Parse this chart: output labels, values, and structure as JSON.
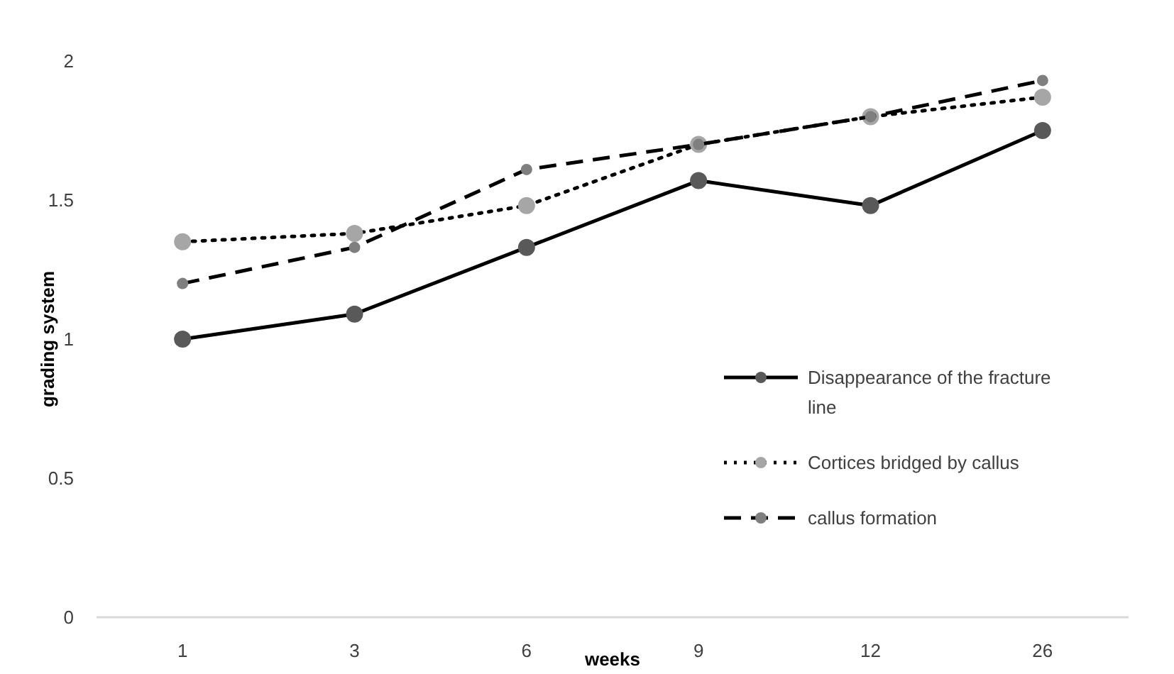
{
  "chart_data": {
    "type": "line",
    "xlabel": "weeks",
    "ylabel": "grading system",
    "categories": [
      "1",
      "3",
      "6",
      "9",
      "12",
      "26"
    ],
    "series": [
      {
        "name": "Disappearance of the fracture line",
        "color": "#595959",
        "line_style": "solid",
        "values": [
          1.0,
          1.09,
          1.33,
          1.57,
          1.48,
          1.75
        ]
      },
      {
        "name": "Cortices bridged by callus",
        "color": "#a6a6a6",
        "line_style": "dotted",
        "values": [
          1.35,
          1.38,
          1.48,
          1.7,
          1.8,
          1.87
        ]
      },
      {
        "name": "callus formation",
        "color": "#7f7f7f",
        "line_style": "dashed",
        "values": [
          1.2,
          1.33,
          1.61,
          1.7,
          1.8,
          1.93
        ]
      }
    ],
    "ylim": [
      0,
      2
    ],
    "yticks": [
      0,
      0.5,
      1,
      1.5,
      2
    ],
    "grid": false,
    "legend": "right",
    "marker": "circle"
  }
}
